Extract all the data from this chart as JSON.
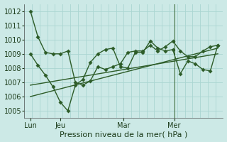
{
  "background_color": "#cce9e6",
  "grid_color": "#aad5d1",
  "line_color": "#2d5c28",
  "ylim": [
    1004.5,
    1012.5
  ],
  "yticks": [
    1005,
    1006,
    1007,
    1008,
    1009,
    1010,
    1011,
    1012
  ],
  "xlabel": "Pression niveau de la mer( hPa )",
  "day_labels": [
    "Lun",
    "Jeu",
    "Mar",
    "Mer"
  ],
  "day_positions": [
    8,
    48,
    132,
    200
  ],
  "xlim": [
    0,
    265
  ],
  "series1_x": [
    8,
    18,
    28,
    38,
    48,
    58,
    68,
    78,
    88,
    98,
    108,
    118,
    128,
    138,
    148,
    158,
    168,
    178,
    188,
    198,
    208,
    218,
    228,
    238,
    248,
    258
  ],
  "series1_y": [
    1012.0,
    1010.2,
    1009.1,
    1009.0,
    1009.0,
    1009.2,
    1007.0,
    1006.8,
    1007.1,
    1008.1,
    1007.9,
    1008.1,
    1008.3,
    1009.1,
    1009.2,
    1009.2,
    1009.6,
    1009.2,
    1009.5,
    1009.9,
    1009.2,
    1008.8,
    1008.8,
    1009.2,
    1009.5,
    1009.6
  ],
  "series2_x": [
    8,
    18,
    28,
    38,
    48,
    58,
    68,
    78,
    88,
    98,
    108,
    118,
    128,
    138,
    148,
    158,
    168,
    178,
    188,
    198,
    208,
    218,
    228,
    238,
    248,
    258
  ],
  "series2_y": [
    1009.0,
    1008.2,
    1007.5,
    1006.7,
    1005.6,
    1005.0,
    1006.8,
    1007.2,
    1008.4,
    1009.0,
    1009.3,
    1009.4,
    1008.1,
    1008.0,
    1009.1,
    1009.1,
    1009.9,
    1009.4,
    1009.2,
    1009.3,
    1007.6,
    1008.5,
    1008.3,
    1007.9,
    1007.8,
    1009.6
  ],
  "trend1_x": [
    8,
    258
  ],
  "trend1_y": [
    1006.8,
    1009.0
  ],
  "trend2_x": [
    8,
    258
  ],
  "trend2_y": [
    1006.0,
    1009.4
  ],
  "vline_x": 200,
  "marker_size": 2.8,
  "linewidth": 1.0,
  "tick_fontsize": 7.0,
  "xlabel_fontsize": 8.0
}
